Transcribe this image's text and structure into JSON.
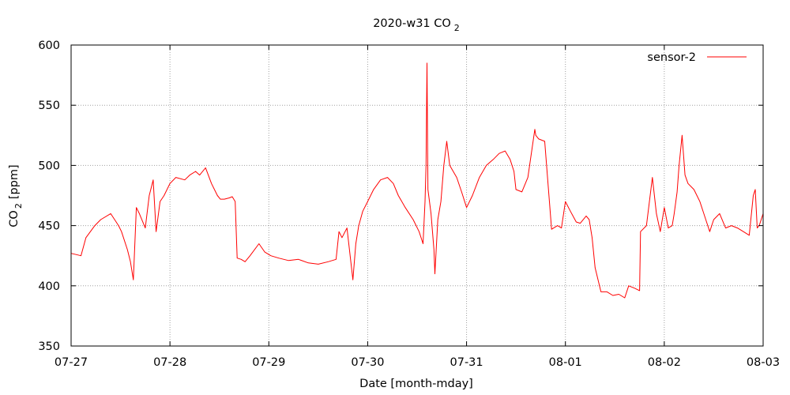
{
  "chart_data": {
    "type": "line",
    "title": "2020-w31 CO",
    "title_sub": "2",
    "xlabel": "Date [month-mday]",
    "ylabel": "CO",
    "ylabel_sub": "2",
    "ylabel_unit": "[ppm]",
    "xlim": [
      "2020-07-27T00:00",
      "2020-08-03T00:00"
    ],
    "ylim": [
      350,
      600
    ],
    "x_ticks": [
      "07-27",
      "07-28",
      "07-29",
      "07-30",
      "07-31",
      "08-01",
      "08-02",
      "08-03"
    ],
    "y_ticks": [
      350,
      400,
      450,
      500,
      550,
      600
    ],
    "grid": true,
    "legend_position": "top-right",
    "line_color": "#ff0000",
    "series": [
      {
        "name": "sensor-2",
        "x": [
          "2020-07-27T00:00",
          "2020-07-27T02:24",
          "2020-07-27T03:36",
          "2020-07-27T05:45",
          "2020-07-27T07:12",
          "2020-07-27T09:36",
          "2020-07-27T10:34",
          "2020-07-27T11:31",
          "2020-07-27T12:14",
          "2020-07-27T13:41",
          "2020-07-27T14:24",
          "2020-07-27T15:07",
          "2020-07-27T15:50",
          "2020-07-27T16:34",
          "2020-07-27T18:00",
          "2020-07-27T18:58",
          "2020-07-27T19:55",
          "2020-07-27T20:38",
          "2020-07-27T21:36",
          "2020-07-27T22:34",
          "2020-07-28T00:00",
          "2020-07-28T01:26",
          "2020-07-28T03:36",
          "2020-07-28T04:48",
          "2020-07-28T06:14",
          "2020-07-28T07:12",
          "2020-07-28T08:38",
          "2020-07-28T10:05",
          "2020-07-28T11:31",
          "2020-07-28T12:14",
          "2020-07-28T13:12",
          "2020-07-28T14:24",
          "2020-07-28T15:07",
          "2020-07-28T15:50",
          "2020-07-28T16:19",
          "2020-07-28T17:17",
          "2020-07-28T18:14",
          "2020-07-28T19:26",
          "2020-07-28T21:36",
          "2020-07-28T23:02",
          "2020-07-29T00:29",
          "2020-07-29T02:24",
          "2020-07-29T04:48",
          "2020-07-29T07:12",
          "2020-07-29T09:36",
          "2020-07-29T12:00",
          "2020-07-29T14:24",
          "2020-07-29T16:19",
          "2020-07-29T17:02",
          "2020-07-29T17:46",
          "2020-07-29T18:58",
          "2020-07-29T20:24",
          "2020-07-29T21:07",
          "2020-07-29T21:50",
          "2020-07-29T22:48",
          "2020-07-30T00:00",
          "2020-07-30T01:26",
          "2020-07-30T03:07",
          "2020-07-30T04:48",
          "2020-07-30T06:14",
          "2020-07-30T07:26",
          "2020-07-30T09:07",
          "2020-07-30T11:02",
          "2020-07-30T12:29",
          "2020-07-30T13:26",
          "2020-07-30T13:55",
          "2020-07-30T14:10",
          "2020-07-30T14:24",
          "2020-07-30T14:38",
          "2020-07-30T15:22",
          "2020-07-30T16:05",
          "2020-07-30T16:19",
          "2020-07-30T17:02",
          "2020-07-30T17:46",
          "2020-07-30T18:29",
          "2020-07-30T19:12",
          "2020-07-30T19:55",
          "2020-07-30T21:36",
          "2020-07-30T22:48",
          "2020-07-31T00:00",
          "2020-07-31T01:26",
          "2020-07-31T03:07",
          "2020-07-31T04:48",
          "2020-07-31T06:29",
          "2020-07-31T07:55",
          "2020-07-31T09:22",
          "2020-07-31T10:34",
          "2020-07-31T11:31",
          "2020-07-31T12:00",
          "2020-07-31T13:26",
          "2020-07-31T14:53",
          "2020-07-31T16:34",
          "2020-07-31T16:48",
          "2020-07-31T17:31",
          "2020-07-31T18:58",
          "2020-07-31T20:38",
          "2020-07-31T22:05",
          "2020-07-31T23:02",
          "2020-08-01T00:00",
          "2020-08-01T01:12",
          "2020-08-01T02:38",
          "2020-08-01T03:36",
          "2020-08-01T05:02",
          "2020-08-01T05:46",
          "2020-08-01T06:29",
          "2020-08-01T07:12",
          "2020-08-01T08:38",
          "2020-08-01T10:05",
          "2020-08-01T11:31",
          "2020-08-01T12:58",
          "2020-08-01T14:24",
          "2020-08-01T15:22",
          "2020-08-01T16:48",
          "2020-08-01T18:00",
          "2020-08-01T18:14",
          "2020-08-01T19:41",
          "2020-08-01T21:07",
          "2020-08-01T22:05",
          "2020-08-01T23:02",
          "2020-08-02T00:00",
          "2020-08-02T00:58",
          "2020-08-02T01:55",
          "2020-08-02T02:24",
          "2020-08-02T03:07",
          "2020-08-02T03:36",
          "2020-08-02T04:19",
          "2020-08-02T05:02",
          "2020-08-02T05:46",
          "2020-08-02T07:12",
          "2020-08-02T08:38",
          "2020-08-02T10:05",
          "2020-08-02T11:02",
          "2020-08-02T12:00",
          "2020-08-02T13:26",
          "2020-08-02T14:53",
          "2020-08-02T16:19",
          "2020-08-02T17:46",
          "2020-08-02T19:12",
          "2020-08-02T20:38",
          "2020-08-02T21:36",
          "2020-08-02T22:05",
          "2020-08-02T22:34",
          "2020-08-02T23:02",
          "2020-08-03T00:00"
        ],
        "y": [
          427,
          425,
          440,
          450,
          455,
          460,
          455,
          450,
          445,
          430,
          420,
          405,
          465,
          460,
          448,
          475,
          488,
          445,
          470,
          475,
          485,
          490,
          488,
          492,
          495,
          492,
          498,
          485,
          475,
          472,
          472,
          473,
          474,
          470,
          423,
          422,
          420,
          425,
          435,
          428,
          425,
          423,
          421,
          422,
          419,
          418,
          420,
          422,
          445,
          440,
          448,
          405,
          435,
          450,
          462,
          470,
          480,
          488,
          490,
          485,
          475,
          465,
          455,
          445,
          435,
          470,
          500,
          585,
          480,
          460,
          430,
          410,
          455,
          470,
          500,
          520,
          500,
          490,
          478,
          465,
          475,
          490,
          500,
          505,
          510,
          512,
          505,
          495,
          480,
          478,
          490,
          530,
          525,
          522,
          520,
          447,
          450,
          448,
          470,
          462,
          453,
          452,
          458,
          455,
          440,
          415,
          395,
          395,
          392,
          393,
          390,
          400,
          398,
          396,
          445,
          450,
          490,
          460,
          445,
          465,
          448,
          450,
          460,
          478,
          500,
          525,
          492,
          485,
          480,
          470,
          455,
          445,
          455,
          460,
          448,
          450,
          448,
          445,
          442,
          475,
          480,
          448,
          450,
          460
        ]
      }
    ]
  }
}
